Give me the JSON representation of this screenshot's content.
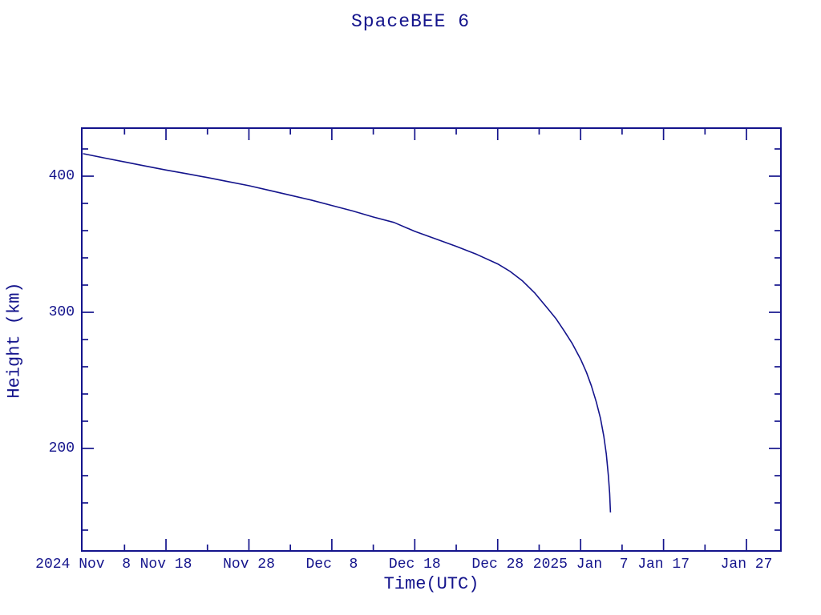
{
  "chart_data": {
    "type": "line",
    "title": "SpaceBEE 6",
    "xlabel": "Time(UTC)",
    "ylabel": "Height (km)",
    "line_color": "#14148c",
    "background_color": "#ffffff",
    "legend": null,
    "grid": false,
    "x_axis": {
      "unit": "date (UTC)",
      "start_date": "2024-11-08",
      "end_date": "2025-01-31",
      "major_tick_days": [
        10,
        20,
        30,
        40,
        50,
        60,
        70,
        80
      ],
      "minor_tick_days": [
        5,
        15,
        25,
        35,
        45,
        55,
        65,
        75
      ],
      "tick_labels": [
        {
          "day": 0,
          "text": "2024 Nov  8"
        },
        {
          "day": 10,
          "text": "Nov 18"
        },
        {
          "day": 20,
          "text": "Nov 28"
        },
        {
          "day": 30,
          "text": "Dec  8"
        },
        {
          "day": 40,
          "text": "Dec 18"
        },
        {
          "day": 50,
          "text": "Dec 28"
        },
        {
          "day": 60,
          "text": "2025 Jan  7"
        },
        {
          "day": 70,
          "text": "Jan 17"
        },
        {
          "day": 80,
          "text": "Jan 27"
        }
      ]
    },
    "y_axis": {
      "unit": "km",
      "range": [
        125,
        435
      ],
      "major_ticks": [
        200,
        300,
        400
      ],
      "minor_tick_step": 20,
      "tick_labels": [
        "200",
        "300",
        "400"
      ]
    },
    "series": [
      {
        "name": "orbital height",
        "points_day_km": [
          [
            0,
            416.5
          ],
          [
            2.5,
            413.5
          ],
          [
            5,
            410.5
          ],
          [
            7.5,
            407.5
          ],
          [
            10,
            404.5
          ],
          [
            12.5,
            401.8
          ],
          [
            15,
            399.0
          ],
          [
            17.5,
            396.0
          ],
          [
            20,
            393.0
          ],
          [
            22.5,
            389.5
          ],
          [
            25,
            386.0
          ],
          [
            27.5,
            382.5
          ],
          [
            30,
            378.5
          ],
          [
            32.5,
            374.5
          ],
          [
            35,
            370.0
          ],
          [
            37.5,
            366.0
          ],
          [
            40,
            359.5
          ],
          [
            42.5,
            354.0
          ],
          [
            45,
            348.5
          ],
          [
            47.5,
            342.5
          ],
          [
            50,
            335.5
          ],
          [
            51.5,
            330.0
          ],
          [
            53,
            323.0
          ],
          [
            54.5,
            314.0
          ],
          [
            56,
            303.0
          ],
          [
            57,
            295.5
          ],
          [
            58,
            286.5
          ],
          [
            59,
            277.0
          ],
          [
            60,
            265.5
          ],
          [
            60.7,
            256.0
          ],
          [
            61.3,
            246.0
          ],
          [
            61.9,
            234.0
          ],
          [
            62.4,
            222.0
          ],
          [
            62.8,
            209.0
          ],
          [
            63.1,
            196.0
          ],
          [
            63.35,
            180.0
          ],
          [
            63.5,
            167.0
          ],
          [
            63.6,
            153.0
          ]
        ],
        "decay_note": "reaches ~153 km on 2025-01-10/11"
      }
    ]
  }
}
